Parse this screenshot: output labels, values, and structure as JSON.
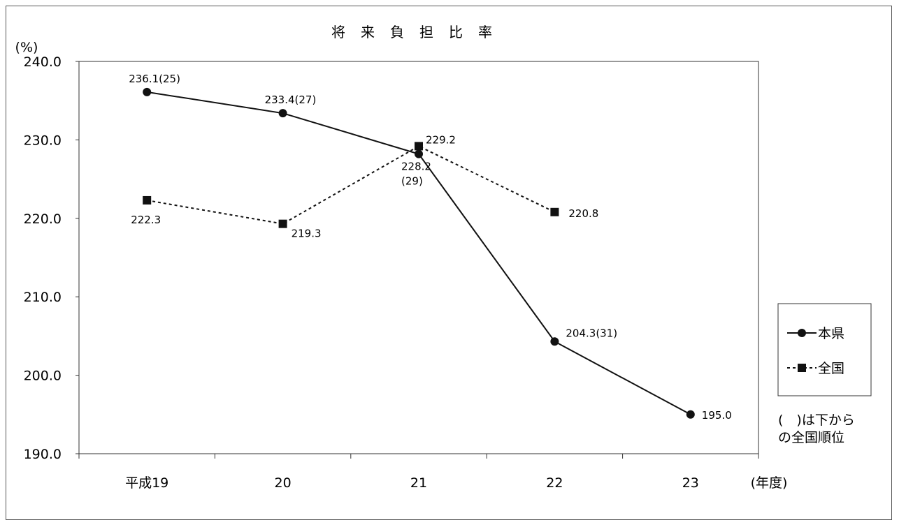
{
  "chart_data": {
    "type": "line",
    "title": "将来負担比率",
    "ylabel": "(%)",
    "xlabel": "(年度)",
    "categories": [
      "平成19",
      "20",
      "21",
      "22",
      "23"
    ],
    "ylim": [
      190,
      240
    ],
    "yticks": [
      "240.0",
      "230.0",
      "220.0",
      "210.0",
      "200.0",
      "190.0"
    ],
    "grid": false,
    "legend_position": "right",
    "series": [
      {
        "name": "本県",
        "style": "solid",
        "marker": "circle",
        "values": [
          236.1,
          233.4,
          228.2,
          204.3,
          195.0
        ],
        "labels": [
          "236.1(25)",
          "233.4(27)",
          "228.2",
          "204.3(31)",
          "195.0"
        ],
        "sub_labels": [
          "",
          "",
          "(29)",
          "",
          ""
        ]
      },
      {
        "name": "全国",
        "style": "dashed",
        "marker": "square",
        "values": [
          222.3,
          219.3,
          229.2,
          220.8,
          null
        ],
        "labels": [
          "222.3",
          "219.3",
          "229.2",
          "220.8",
          ""
        ]
      }
    ],
    "note_lines": [
      "(　)は下から",
      "の全国順位"
    ],
    "colors": {
      "line": "#111111",
      "background": "#ffffff"
    }
  }
}
